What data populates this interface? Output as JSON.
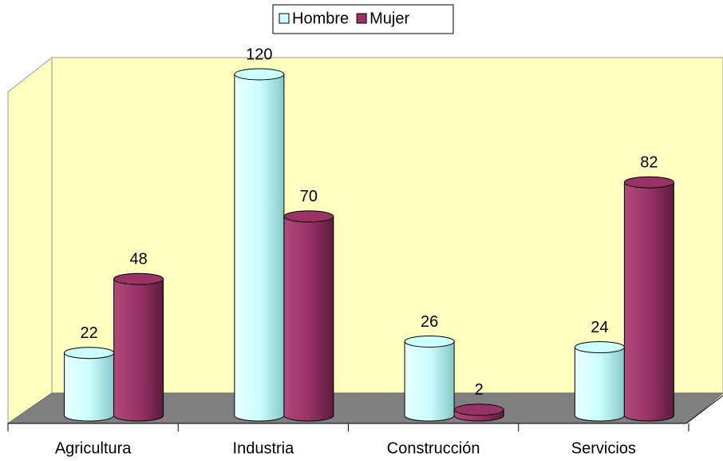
{
  "chart_data": {
    "type": "bar3d",
    "categories": [
      "Agricultura",
      "Industria",
      "Construcción",
      "Servicios"
    ],
    "series": [
      {
        "name": "Hombre",
        "color": "#ccffff",
        "values": [
          22,
          120,
          26,
          24
        ]
      },
      {
        "name": "Mujer",
        "color": "#993366",
        "values": [
          48,
          70,
          2,
          82
        ]
      }
    ],
    "ylim": [
      0,
      120
    ],
    "legend": "top"
  }
}
